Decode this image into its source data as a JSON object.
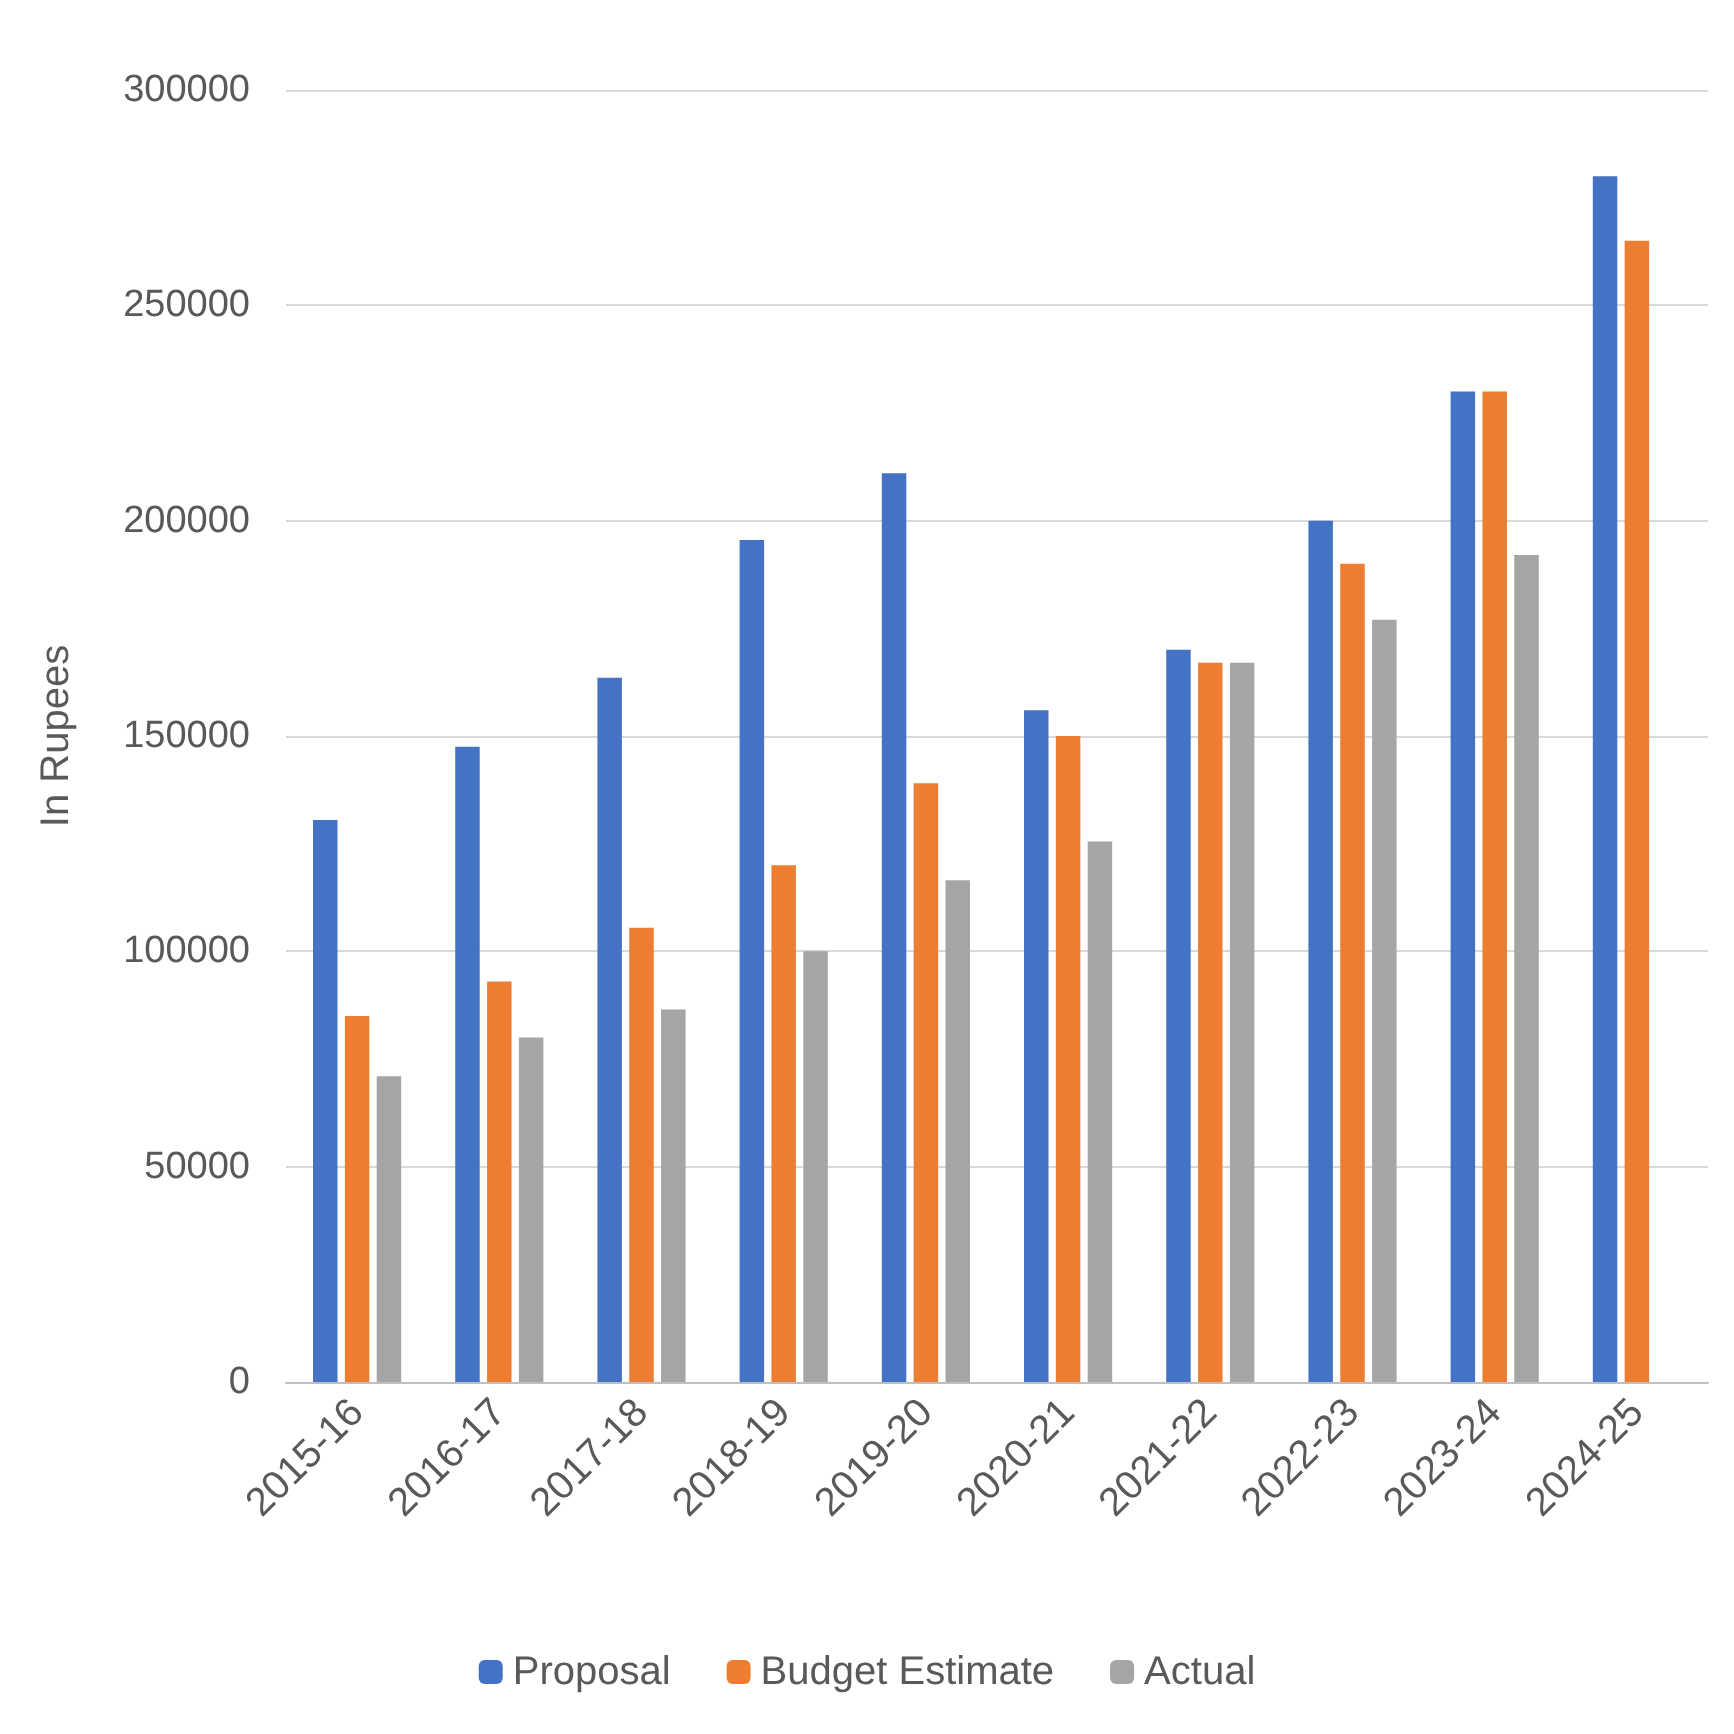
{
  "chart_data": {
    "type": "bar",
    "ylabel": "In Rupees",
    "categories": [
      "2015-16",
      "2016-17",
      "2017-18",
      "2018-19",
      "2019-20",
      "2020-21",
      "2021-22",
      "2022-23",
      "2023-24",
      "2024-25"
    ],
    "series": [
      {
        "name": "Proposal",
        "color": "#4472c4",
        "values": [
          130500,
          147500,
          163500,
          195500,
          211000,
          156000,
          170000,
          200000,
          230000,
          280000
        ]
      },
      {
        "name": "Budget Estimate",
        "color": "#ed7d31",
        "values": [
          85000,
          93000,
          105500,
          120000,
          139000,
          150000,
          167000,
          190000,
          230000,
          265000
        ]
      },
      {
        "name": "Actual",
        "color": "#a5a5a5",
        "values": [
          71000,
          80000,
          86500,
          100000,
          116500,
          125500,
          167000,
          177000,
          192000,
          null
        ]
      }
    ],
    "ylim": [
      0,
      300000
    ],
    "yticks": [
      0,
      50000,
      100000,
      150000,
      200000,
      250000,
      300000
    ],
    "grid": "y",
    "legend": "bottom"
  }
}
